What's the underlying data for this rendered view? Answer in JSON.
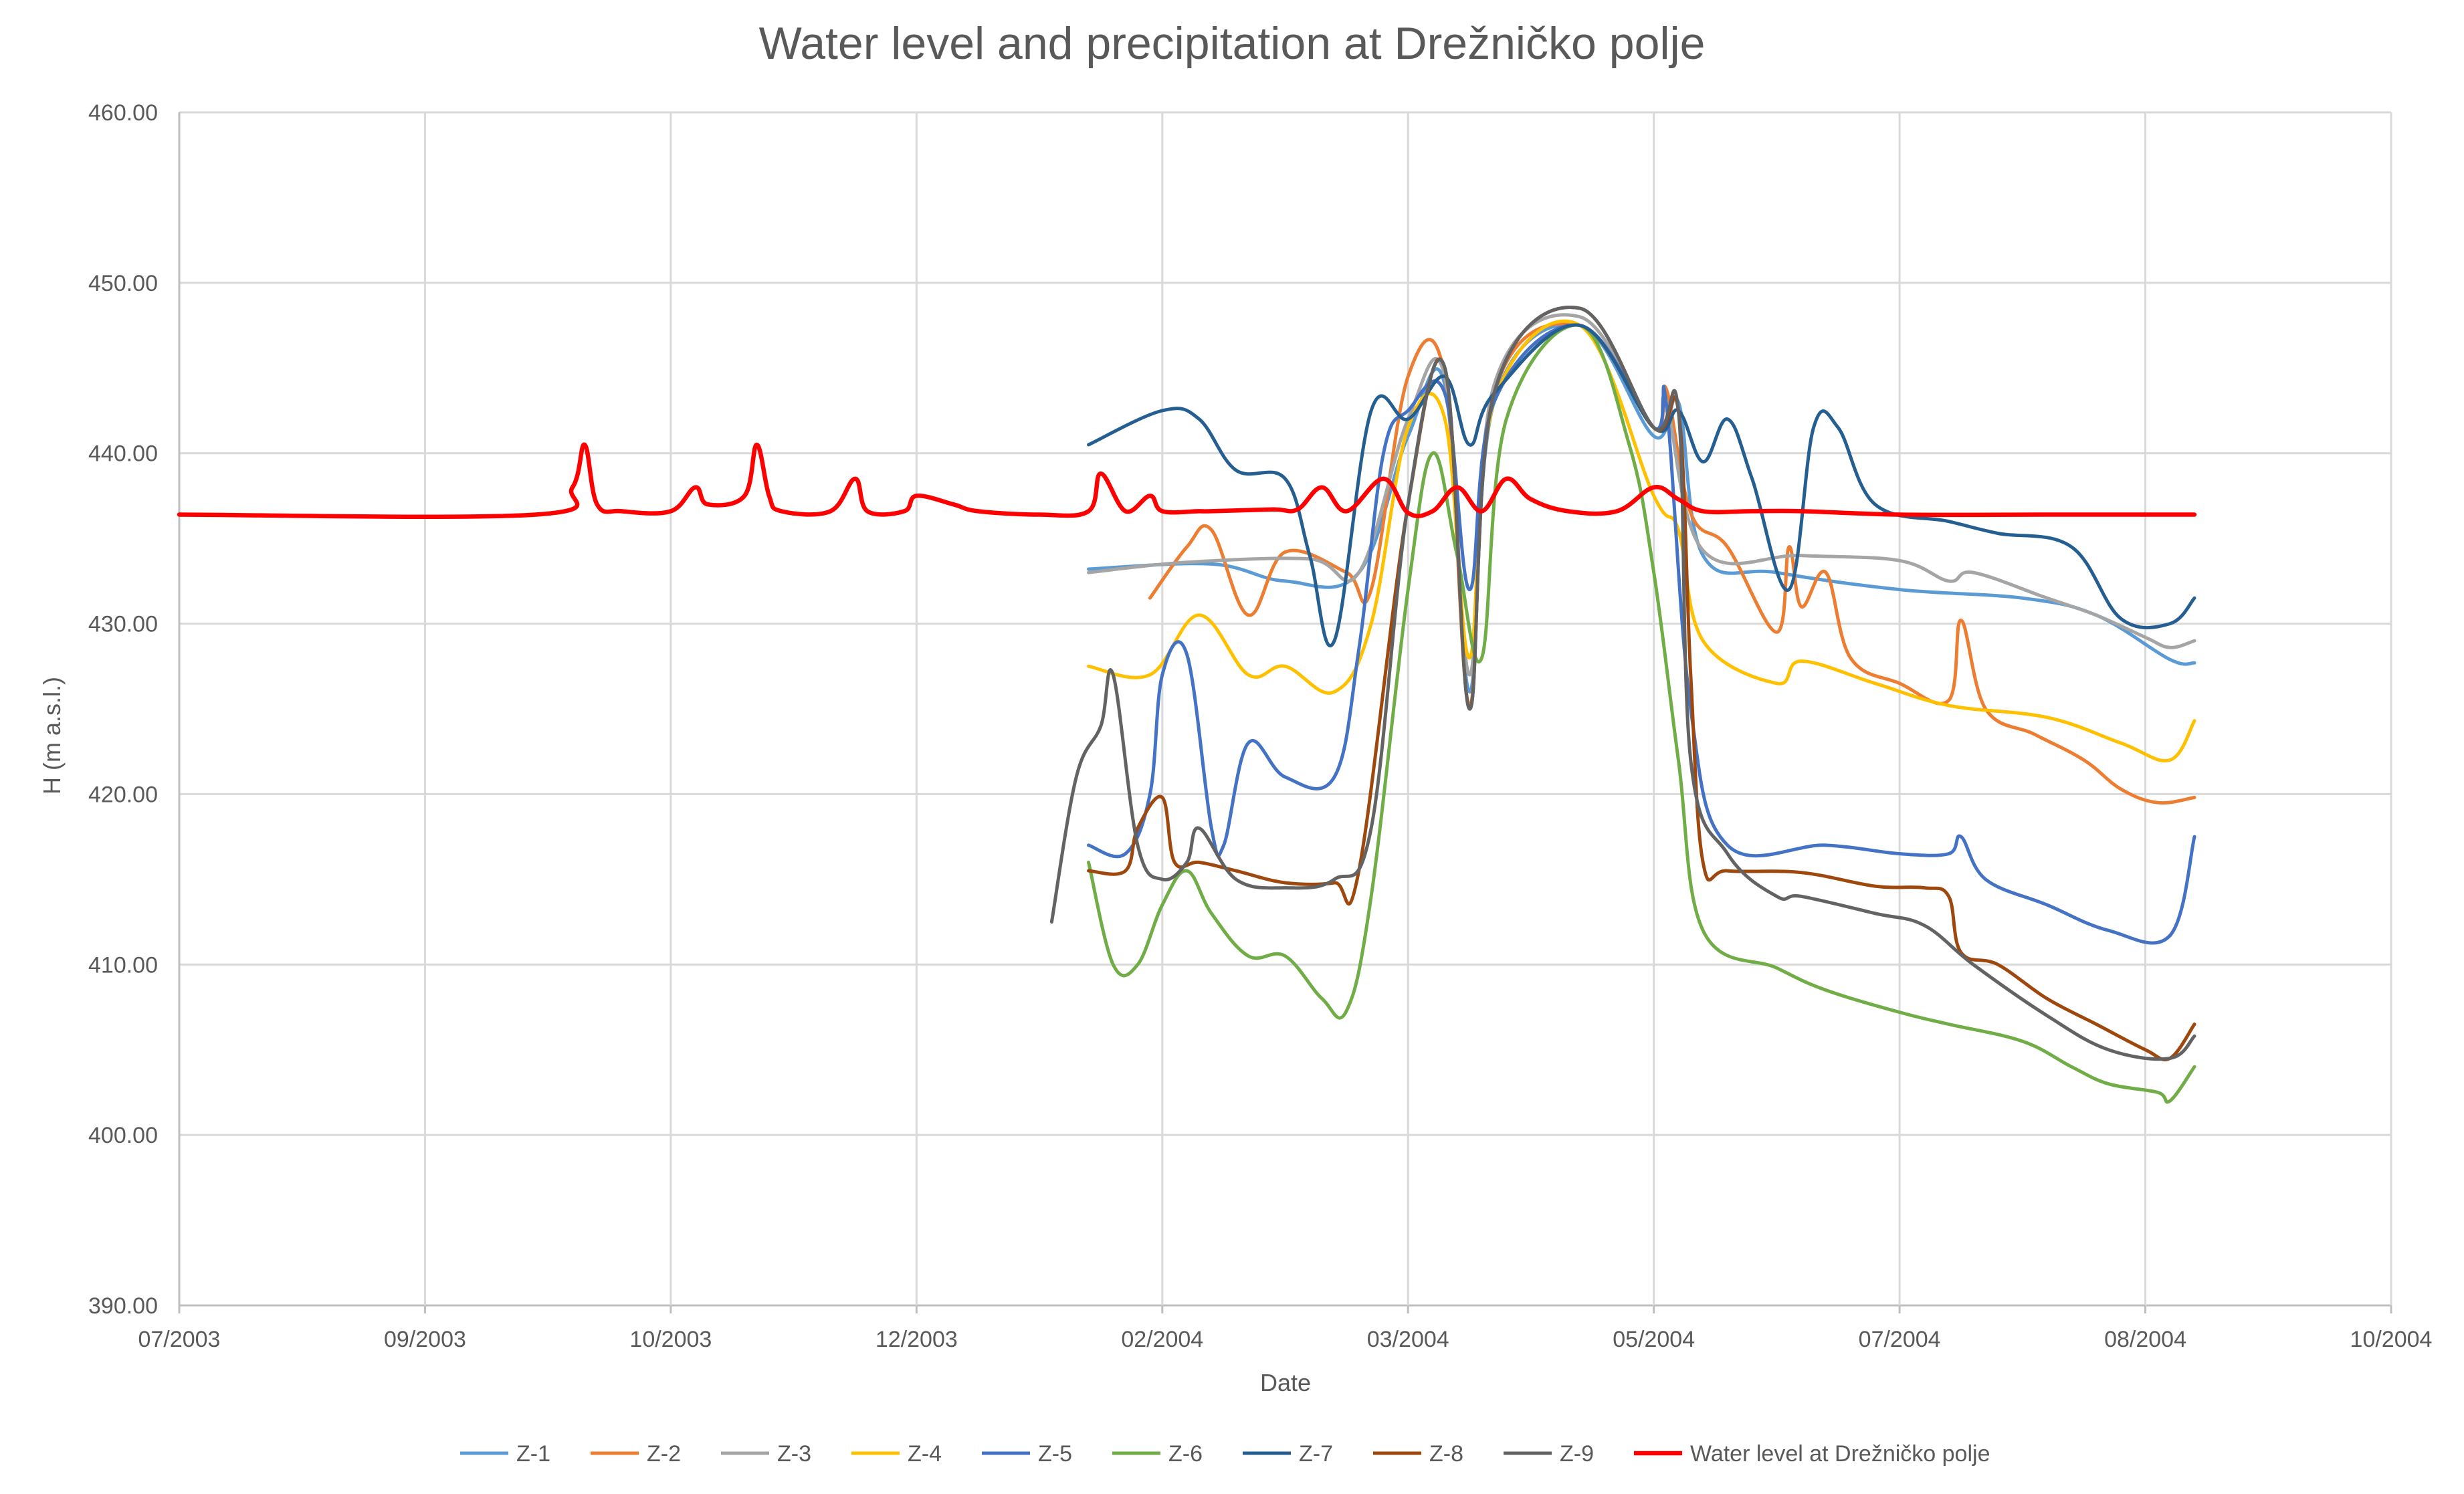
{
  "chart_data": {
    "type": "line",
    "title": "Water level and precipitation at Drežničko polje",
    "xlabel": "Date",
    "ylabel": "H (m a.s.l.)",
    "ylim": [
      390,
      460
    ],
    "y_ticks": [
      "390.00",
      "400.00",
      "410.00",
      "420.00",
      "430.00",
      "440.00",
      "450.00",
      "460.00"
    ],
    "x_tick_labels": [
      "07/2003",
      "09/2003",
      "10/2003",
      "12/2003",
      "02/2004",
      "03/2004",
      "05/2004",
      "07/2004",
      "08/2004",
      "10/2004"
    ],
    "x_axis_note": "x values are positions in tick intervals (0 = 07/2003, 9 = 10/2004)",
    "xlim": [
      0,
      9
    ],
    "grid": true,
    "legend_position": "bottom",
    "series": [
      {
        "name": "Z-1",
        "color": "#5b9bd5",
        "points": [
          [
            3.7,
            433.2
          ],
          [
            4.2,
            433.5
          ],
          [
            4.5,
            432.5
          ],
          [
            4.8,
            433.0
          ],
          [
            5.0,
            441.0
          ],
          [
            5.15,
            444.0
          ],
          [
            5.25,
            426.0
          ],
          [
            5.35,
            443.0
          ],
          [
            5.7,
            447.5
          ],
          [
            6.0,
            441.0
          ],
          [
            6.1,
            443.0
          ],
          [
            6.2,
            434.0
          ],
          [
            6.5,
            433.0
          ],
          [
            7.0,
            432.0
          ],
          [
            7.5,
            431.5
          ],
          [
            7.8,
            430.5
          ],
          [
            8.1,
            427.9
          ],
          [
            8.2,
            427.7
          ]
        ]
      },
      {
        "name": "Z-2",
        "color": "#ed7d31",
        "points": [
          [
            3.95,
            431.5
          ],
          [
            4.1,
            434.5
          ],
          [
            4.2,
            435.5
          ],
          [
            4.35,
            430.5
          ],
          [
            4.5,
            434.2
          ],
          [
            4.75,
            433.0
          ],
          [
            4.85,
            432.0
          ],
          [
            5.0,
            444.5
          ],
          [
            5.15,
            444.5
          ],
          [
            5.25,
            425.2
          ],
          [
            5.35,
            443.5
          ],
          [
            5.7,
            447.5
          ],
          [
            6.0,
            441.5
          ],
          [
            6.05,
            443.8
          ],
          [
            6.15,
            436.5
          ],
          [
            6.3,
            434.5
          ],
          [
            6.5,
            429.5
          ],
          [
            6.55,
            434.5
          ],
          [
            6.6,
            431.0
          ],
          [
            6.7,
            433.0
          ],
          [
            6.8,
            428.0
          ],
          [
            7.0,
            426.5
          ],
          [
            7.2,
            425.5
          ],
          [
            7.25,
            430.2
          ],
          [
            7.35,
            425.0
          ],
          [
            7.55,
            423.5
          ],
          [
            7.75,
            422.0
          ],
          [
            7.9,
            420.3
          ],
          [
            8.05,
            419.5
          ],
          [
            8.2,
            419.8
          ]
        ]
      },
      {
        "name": "Z-3",
        "color": "#a5a5a5",
        "points": [
          [
            3.7,
            433.0
          ],
          [
            4.1,
            433.6
          ],
          [
            4.6,
            433.8
          ],
          [
            4.8,
            433.0
          ],
          [
            5.0,
            442.0
          ],
          [
            5.15,
            444.5
          ],
          [
            5.25,
            427.0
          ],
          [
            5.35,
            444.0
          ],
          [
            5.7,
            448.0
          ],
          [
            6.0,
            441.5
          ],
          [
            6.05,
            443.0
          ],
          [
            6.2,
            434.3
          ],
          [
            6.6,
            434.0
          ],
          [
            7.0,
            433.7
          ],
          [
            7.2,
            432.5
          ],
          [
            7.3,
            433.0
          ],
          [
            7.6,
            431.5
          ],
          [
            7.8,
            430.5
          ],
          [
            8.0,
            429.2
          ],
          [
            8.1,
            428.6
          ],
          [
            8.2,
            429.0
          ]
        ]
      },
      {
        "name": "Z-4",
        "color": "#ffc000",
        "points": [
          [
            3.7,
            427.5
          ],
          [
            3.95,
            427.0
          ],
          [
            4.15,
            430.5
          ],
          [
            4.35,
            427.0
          ],
          [
            4.5,
            427.5
          ],
          [
            4.7,
            426.0
          ],
          [
            4.85,
            430.0
          ],
          [
            5.0,
            441.5
          ],
          [
            5.15,
            442.0
          ],
          [
            5.25,
            428.0
          ],
          [
            5.35,
            443.0
          ],
          [
            5.7,
            447.5
          ],
          [
            6.0,
            437.5
          ],
          [
            6.1,
            435.5
          ],
          [
            6.2,
            429.0
          ],
          [
            6.5,
            426.5
          ],
          [
            6.6,
            427.8
          ],
          [
            6.9,
            426.5
          ],
          [
            7.2,
            425.2
          ],
          [
            7.6,
            424.5
          ],
          [
            7.9,
            423.0
          ],
          [
            8.1,
            422.0
          ],
          [
            8.2,
            424.3
          ]
        ]
      },
      {
        "name": "Z-5",
        "color": "#4472c4",
        "points": [
          [
            3.7,
            417.0
          ],
          [
            3.85,
            416.5
          ],
          [
            3.95,
            420.0
          ],
          [
            4.0,
            427.0
          ],
          [
            4.1,
            428.2
          ],
          [
            4.2,
            418.0
          ],
          [
            4.25,
            417.0
          ],
          [
            4.35,
            423.0
          ],
          [
            4.5,
            421.0
          ],
          [
            4.7,
            421.0
          ],
          [
            4.8,
            428.5
          ],
          [
            4.9,
            440.0
          ],
          [
            5.0,
            442.5
          ],
          [
            5.15,
            443.5
          ],
          [
            5.25,
            432.0
          ],
          [
            5.35,
            443.0
          ],
          [
            5.7,
            447.5
          ],
          [
            6.0,
            441.5
          ],
          [
            6.05,
            443.0
          ],
          [
            6.15,
            425.0
          ],
          [
            6.3,
            417.0
          ],
          [
            6.7,
            417.0
          ],
          [
            7.0,
            416.5
          ],
          [
            7.2,
            416.5
          ],
          [
            7.25,
            417.5
          ],
          [
            7.35,
            415.0
          ],
          [
            7.6,
            413.5
          ],
          [
            7.85,
            412.0
          ],
          [
            8.1,
            411.7
          ],
          [
            8.2,
            417.5
          ]
        ]
      },
      {
        "name": "Z-6",
        "color": "#70ad47",
        "points": [
          [
            3.7,
            416.0
          ],
          [
            3.8,
            410.0
          ],
          [
            3.9,
            410.0
          ],
          [
            4.0,
            413.5
          ],
          [
            4.1,
            415.5
          ],
          [
            4.2,
            413.0
          ],
          [
            4.35,
            410.5
          ],
          [
            4.5,
            410.5
          ],
          [
            4.65,
            408.0
          ],
          [
            4.75,
            407.3
          ],
          [
            4.85,
            414.0
          ],
          [
            5.0,
            432.0
          ],
          [
            5.1,
            440.0
          ],
          [
            5.2,
            434.0
          ],
          [
            5.3,
            428.0
          ],
          [
            5.4,
            442.0
          ],
          [
            5.7,
            447.5
          ],
          [
            5.9,
            440.5
          ],
          [
            6.0,
            433.0
          ],
          [
            6.1,
            422.0
          ],
          [
            6.2,
            412.0
          ],
          [
            6.5,
            409.8
          ],
          [
            6.7,
            408.5
          ],
          [
            7.0,
            407.2
          ],
          [
            7.2,
            406.5
          ],
          [
            7.5,
            405.5
          ],
          [
            7.7,
            404.0
          ],
          [
            7.85,
            403.0
          ],
          [
            8.05,
            402.5
          ],
          [
            8.1,
            402.0
          ],
          [
            8.2,
            404.0
          ]
        ]
      },
      {
        "name": "Z-7",
        "color": "#255e91",
        "points": [
          [
            3.7,
            440.5
          ],
          [
            4.0,
            442.5
          ],
          [
            4.15,
            442.0
          ],
          [
            4.3,
            439.0
          ],
          [
            4.5,
            438.5
          ],
          [
            4.6,
            434.0
          ],
          [
            4.7,
            429.0
          ],
          [
            4.85,
            442.5
          ],
          [
            5.0,
            442.0
          ],
          [
            5.15,
            444.5
          ],
          [
            5.25,
            440.5
          ],
          [
            5.35,
            443.5
          ],
          [
            5.7,
            447.5
          ],
          [
            6.0,
            441.5
          ],
          [
            6.1,
            442.5
          ],
          [
            6.2,
            439.5
          ],
          [
            6.3,
            442.0
          ],
          [
            6.4,
            438.5
          ],
          [
            6.55,
            432.0
          ],
          [
            6.65,
            441.5
          ],
          [
            6.75,
            441.5
          ],
          [
            6.9,
            437.0
          ],
          [
            7.2,
            436.0
          ],
          [
            7.4,
            435.3
          ],
          [
            7.7,
            434.5
          ],
          [
            7.9,
            430.3
          ],
          [
            8.1,
            430.0
          ],
          [
            8.2,
            431.5
          ]
        ]
      },
      {
        "name": "Z-8",
        "color": "#9e480e",
        "points": [
          [
            3.7,
            415.5
          ],
          [
            3.85,
            415.5
          ],
          [
            3.9,
            418.0
          ],
          [
            4.0,
            419.8
          ],
          [
            4.05,
            416.0
          ],
          [
            4.15,
            416.0
          ],
          [
            4.3,
            415.5
          ],
          [
            4.5,
            414.8
          ],
          [
            4.7,
            414.8
          ],
          [
            4.8,
            415.5
          ],
          [
            5.0,
            437.0
          ],
          [
            5.15,
            445.0
          ],
          [
            5.25,
            425.0
          ],
          [
            5.35,
            443.5
          ],
          [
            5.7,
            448.5
          ],
          [
            6.0,
            441.5
          ],
          [
            6.1,
            442.5
          ],
          [
            6.15,
            427.0
          ],
          [
            6.2,
            416.0
          ],
          [
            6.3,
            415.5
          ],
          [
            6.6,
            415.4
          ],
          [
            6.9,
            414.6
          ],
          [
            7.1,
            414.5
          ],
          [
            7.2,
            414.0
          ],
          [
            7.25,
            410.7
          ],
          [
            7.4,
            410.0
          ],
          [
            7.6,
            408.0
          ],
          [
            7.8,
            406.5
          ],
          [
            8.0,
            405.0
          ],
          [
            8.1,
            404.5
          ],
          [
            8.2,
            406.5
          ]
        ]
      },
      {
        "name": "Z-9",
        "color": "#636363",
        "points": [
          [
            3.55,
            412.5
          ],
          [
            3.65,
            421.0
          ],
          [
            3.75,
            424.0
          ],
          [
            3.8,
            427.0
          ],
          [
            3.9,
            417.0
          ],
          [
            4.0,
            415.0
          ],
          [
            4.1,
            416.0
          ],
          [
            4.15,
            418.0
          ],
          [
            4.3,
            415.0
          ],
          [
            4.5,
            414.5
          ],
          [
            4.7,
            415.0
          ],
          [
            4.85,
            418.0
          ],
          [
            5.0,
            437.0
          ],
          [
            5.15,
            445.0
          ],
          [
            5.25,
            425.0
          ],
          [
            5.35,
            443.5
          ],
          [
            5.7,
            448.5
          ],
          [
            6.0,
            441.5
          ],
          [
            6.1,
            442.5
          ],
          [
            6.15,
            422.0
          ],
          [
            6.3,
            416.5
          ],
          [
            6.5,
            414.0
          ],
          [
            6.6,
            414.0
          ],
          [
            6.9,
            413.0
          ],
          [
            7.1,
            412.3
          ],
          [
            7.3,
            410.0
          ],
          [
            7.6,
            407.0
          ],
          [
            7.85,
            405.0
          ],
          [
            8.1,
            404.5
          ],
          [
            8.2,
            405.8
          ]
        ]
      },
      {
        "name": "Water level at Drežničko polje",
        "color": "#ff0000",
        "points": [
          [
            0.0,
            436.4
          ],
          [
            1.45,
            436.4
          ],
          [
            1.6,
            438.0
          ],
          [
            1.65,
            440.5
          ],
          [
            1.7,
            437.0
          ],
          [
            1.8,
            436.6
          ],
          [
            2.0,
            436.6
          ],
          [
            2.1,
            438.0
          ],
          [
            2.15,
            437.0
          ],
          [
            2.3,
            437.5
          ],
          [
            2.35,
            440.5
          ],
          [
            2.4,
            437.5
          ],
          [
            2.45,
            436.6
          ],
          [
            2.65,
            436.6
          ],
          [
            2.75,
            438.5
          ],
          [
            2.8,
            436.6
          ],
          [
            2.95,
            436.6
          ],
          [
            3.0,
            437.5
          ],
          [
            3.15,
            437.0
          ],
          [
            3.25,
            436.6
          ],
          [
            3.5,
            436.4
          ],
          [
            3.7,
            436.6
          ],
          [
            3.75,
            438.8
          ],
          [
            3.85,
            436.6
          ],
          [
            3.95,
            437.5
          ],
          [
            4.0,
            436.6
          ],
          [
            4.15,
            436.6
          ],
          [
            4.2,
            436.6
          ],
          [
            4.45,
            436.7
          ],
          [
            4.55,
            436.7
          ],
          [
            4.65,
            438.0
          ],
          [
            4.75,
            436.6
          ],
          [
            4.9,
            438.5
          ],
          [
            5.0,
            436.5
          ],
          [
            5.1,
            436.6
          ],
          [
            5.2,
            438.0
          ],
          [
            5.3,
            436.6
          ],
          [
            5.4,
            438.5
          ],
          [
            5.5,
            437.3
          ],
          [
            5.65,
            436.6
          ],
          [
            5.85,
            436.6
          ],
          [
            6.0,
            438.0
          ],
          [
            6.1,
            437.3
          ],
          [
            6.2,
            436.6
          ],
          [
            6.4,
            436.6
          ],
          [
            6.6,
            436.6
          ],
          [
            7.0,
            436.4
          ],
          [
            7.6,
            436.4
          ],
          [
            8.2,
            436.4
          ]
        ]
      }
    ]
  }
}
